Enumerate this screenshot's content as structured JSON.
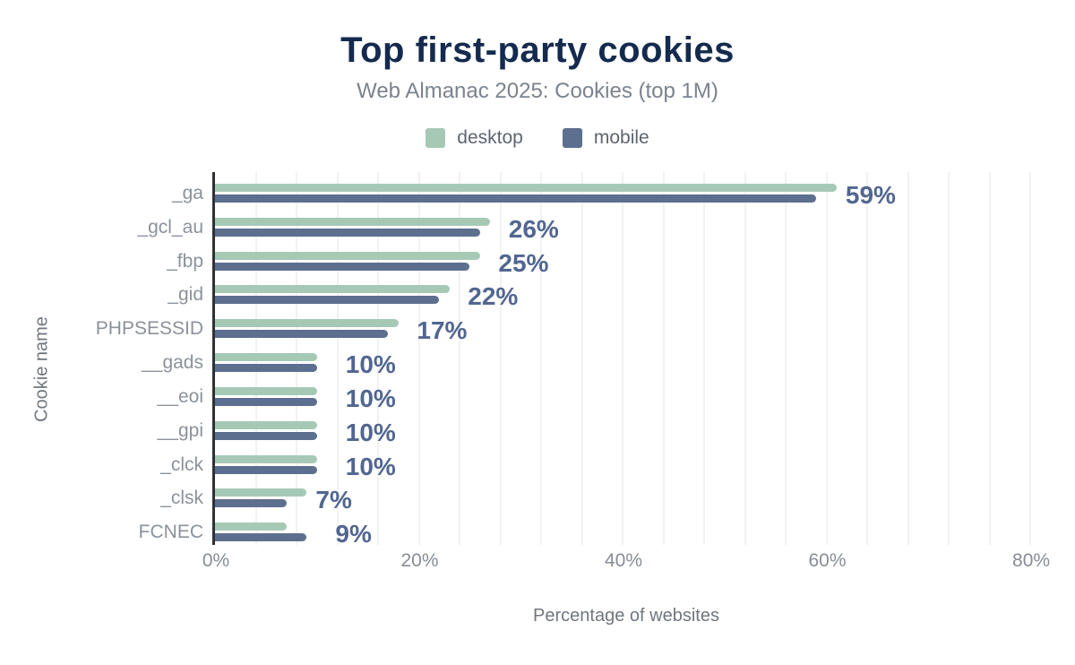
{
  "header": {
    "title": "Top first-party cookies",
    "subtitle": "Web Almanac 2025: Cookies (top 1M)"
  },
  "legend": {
    "items": [
      {
        "label": "desktop",
        "color": "#a6c9b6"
      },
      {
        "label": "mobile",
        "color": "#5d6f8e"
      }
    ]
  },
  "chart_data": {
    "type": "bar",
    "orientation": "horizontal",
    "title": "Top first-party cookies",
    "subtitle": "Web Almanac 2025: Cookies (top 1M)",
    "xlabel": "Percentage of websites",
    "ylabel": "Cookie name",
    "xlim": [
      0,
      80.7
    ],
    "x_ticks": [
      {
        "value": 0,
        "label": "0%"
      },
      {
        "value": 20,
        "label": "20%"
      },
      {
        "value": 40,
        "label": "40%"
      },
      {
        "value": 60,
        "label": "60%"
      },
      {
        "value": 80,
        "label": "80%"
      }
    ],
    "grid": {
      "show": true,
      "axis": "x",
      "minor_step_pct": 4,
      "color": "#f2f2f2"
    },
    "legend_position": "top",
    "categories": [
      "_ga",
      "_gcl_au",
      "_fbp",
      "_gid",
      "PHPSESSID",
      "__gads",
      "__eoi",
      "__gpi",
      "_clck",
      "_clsk",
      "FCNEC"
    ],
    "series": [
      {
        "name": "desktop",
        "color": "#a6c9b6",
        "values": [
          61,
          27,
          26,
          23,
          18,
          10,
          10,
          10,
          10,
          9,
          7
        ]
      },
      {
        "name": "mobile",
        "color": "#5d6f8e",
        "values": [
          59,
          26,
          25,
          22,
          17,
          10,
          10,
          10,
          10,
          7,
          9
        ]
      }
    ],
    "value_labels": [
      "59%",
      "26%",
      "25%",
      "22%",
      "17%",
      "10%",
      "10%",
      "10%",
      "10%",
      "7%",
      "9%"
    ],
    "value_labels_source": "mobile",
    "value_label_color": "#516690",
    "axis_line_color": "#2f3135"
  }
}
